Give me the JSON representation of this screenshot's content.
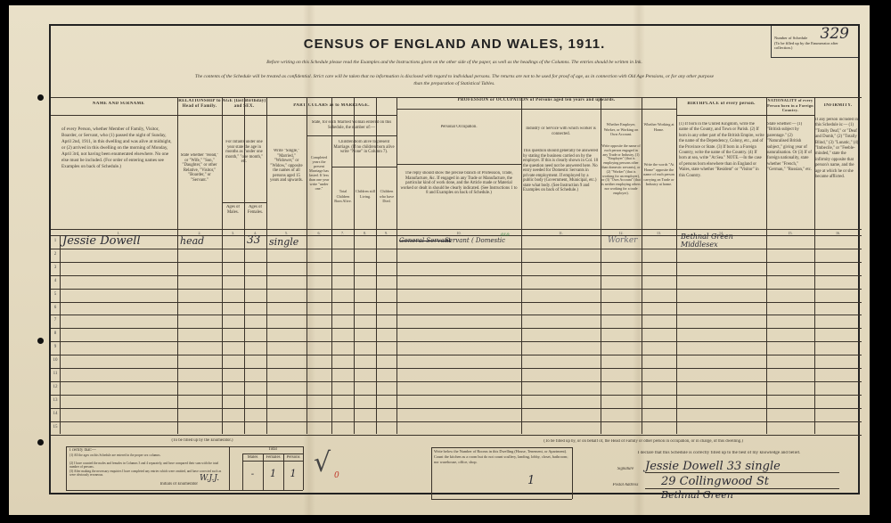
{
  "document": {
    "title": "CENSUS OF ENGLAND AND WALES, 1911.",
    "instruction_line": "Before writing on this Schedule please read the Examples and the Instructions given on the other side of the paper, as well as the headings of the Columns. The entries should be written in Ink.",
    "confidential_line_1": "The contents of the Schedule will be treated as confidential. Strict care will be taken that no information is disclosed with regard to individual persons. The returns are not to be used for proof of age, as in connection with Old Age Pensions, or for any other purpose",
    "confidential_line_2": "than the preparation of Statistical Tables.",
    "schedule_box_label": "Number of Schedule",
    "schedule_box_note": "(To be filled up by the Enumerator after collection.)",
    "schedule_number": "329"
  },
  "headers": {
    "name": "NAME AND SURNAME",
    "name_desc": "of every Person, whether Member of Family, Visitor, Boarder, or Servant, who (1) passed the night of Sunday, April 2nd, 1911, in this dwelling and was alive at midnight, or (2) arrived in this dwelling on the morning of Monday, April 3rd, not having been enumerated elsewhere. No one else must be included. (For order of entering names see Examples on back of Schedule.)",
    "relationship": "RELATIONSHIP to Head of Family.",
    "relationship_desc": "State whether \"Head,\" or \"Wife,\" \"Son,\" \"Daughter,\" or other Relative, \"Visitor,\" \"Boarder,\" or \"Servant.\"",
    "age": "AGE (last Birthday) and SEX.",
    "age_desc": "For Infants under one year state the age in months as \"under one month,\" \"one month,\" etc.",
    "age_males": "Ages of Males.",
    "age_females": "Ages of Females.",
    "marriage": "PARTICULARS as to MARRIAGE.",
    "marriage_condition": "Write \"Single,\" \"Married,\" \"Widower,\" or \"Widow,\" opposite the names of all persons aged 15 years and upwards.",
    "married_woman": "State, for each Married Woman entered on this Schedule, the number of:—",
    "years_married": "Completed years the present Marriage has lasted. If less than one year write \"under one.\"",
    "children_group": "Children born alive to present Marriage. (If no children born alive write \"None\" in Column 7).",
    "children_born": "Total Children Born Alive.",
    "children_living": "Children still Living.",
    "children_died": "Children who have Died.",
    "occupation": "PROFESSION or OCCUPATION of Persons aged ten years and upwards.",
    "personal_occupation": "Personal Occupation.",
    "personal_occupation_desc": "The reply should show the precise branch of Profession, Trade, Manufacture, &c. If engaged in any Trade or Manufacture, the particular kind of work done, and the Article made or Material worked or dealt in should be clearly indicated. (See Instructions 1 to 8 and Examples on back of Schedule.)",
    "industry": "Industry or Service with which worker is connected.",
    "industry_desc": "This question should generally be answered by stating the business carried on by the employer. If this is clearly shown in Col. 10 the question need not be answered here. No entry needed for Domestic Servants in private employment. If employed by a public body (Government, Municipal, etc.) state what body. (See Instruction 9 and Examples on back of Schedule.)",
    "employer": "Whether Employer, Worker, or Working on Own Account.",
    "employer_desc": "Write opposite the name of each person engaged in any Trade or Industry, (1) \"Employer\" (that is employing persons other than domestic servants), or (2) \"Worker\" (that is working for an employer), or (3) \"Own Account\" (that is neither employing others nor working for a trade employer).",
    "home": "Whether Working at Home.",
    "home_desc": "Write the words \"At Home\" opposite the name of each person carrying on Trade or Industry at home.",
    "birthplace": "BIRTHPLACE of every person.",
    "birthplace_desc": "(1) If born in the United Kingdom, write the name of the County, and Town or Parish. (2) If born in any other part of the British Empire, write the name of the Dependency, Colony, etc., and of the Province or State. (3) If born in a Foreign Country, write the name of the Country. (4) If born at sea, write \"At Sea.\" NOTE.—In the case of persons born elsewhere than in England or Wales, state whether \"Resident\" or \"Visitor\" in this Country.",
    "nationality": "NATIONALITY of every Person born in a Foreign Country.",
    "nationality_desc": "State whether:— (1) \"British subject by parentage.\" (2) \"Naturalised British subject,\" giving year of naturalisation. Or (3) If of foreign nationality, state whether \"French,\" \"German,\" \"Russian,\" etc.",
    "infirmity": "INFIRMITY.",
    "infirmity_desc": "If any person included in this Schedule is:— (1) \"Totally Deaf,\" or \"Deaf and Dumb,\" (2) \"Totally Blind,\" (3) \"Lunatic,\" (4) \"Imbecile,\" or \"Feeble-minded,\" state the infirmity opposite that person's name, and the age at which he or she became afflicted.",
    "column_numbers": [
      "1.",
      "2.",
      "3.",
      "4.",
      "5.",
      "6.",
      "7.",
      "8.",
      "9.",
      "10.",
      "11.",
      "12.",
      "13.",
      "14.",
      "15.",
      "16."
    ]
  },
  "rows": {
    "row_numbers": [
      "1",
      "2",
      "3",
      "4",
      "5",
      "6",
      "7",
      "8",
      "9",
      "10",
      "11",
      "12",
      "13",
      "14",
      "15"
    ],
    "entries": [
      {
        "name": "Jessie Dowell",
        "relationship": "head",
        "age_female": "33",
        "condition": "single",
        "occupation_struck": "General Servant",
        "occupation": "Servant ( Domestic",
        "occupation_code": "010",
        "employer": "Worker",
        "birthplace_1": "Bethnal Green",
        "birthplace_2": "Middlesex"
      }
    ]
  },
  "enumerator": {
    "heading": "(To be filled up by the Enumerator.)",
    "certificate_label": "I certify that:—",
    "certificate_lines": [
      "(1) All the ages on this Schedule are entered in the proper sex columns.",
      "(2) I have counted the males and females in Columns 3 and 4 separately, and have compared their sum with the total number of persons.",
      "(3) After making the necessary enquiries I have completed any entries which were omitted, and have corrected such as were obviously erroneous."
    ],
    "total_label": "Total",
    "males_label": "Males",
    "females_label": "Females",
    "persons_label": "Persons",
    "males_value": "-",
    "females_value": "1",
    "persons_value": "1",
    "initials_label": "Initials of Enumerator",
    "initials": "W.J.J."
  },
  "householder": {
    "heading": "(To be filled up by, or on behalf of, the Head of Family or other person in occupation, or in charge, of this dwelling.)",
    "rooms_instruction": "Write below the Number of Rooms in this Dwelling (House, Tenement, or Apartment). Count the kitchen as a room but do not count scullery, landing, lobby, closet, bathroom; nor warehouse, office, shop.",
    "rooms_value": "1",
    "declaration": "I declare that this Schedule is correctly filled up to the best of my knowledge and belief.",
    "signature_label": "Signature",
    "signature": "Jessie Dowell 33 single",
    "address_label": "Postal Address",
    "address_1": "29 Collingwood St",
    "address_2": "Bethnal Green"
  },
  "colors": {
    "paper": "#e6dcc3",
    "ink": "#2b2b33",
    "print": "#3a342c",
    "red_mark": "#c0392b"
  }
}
